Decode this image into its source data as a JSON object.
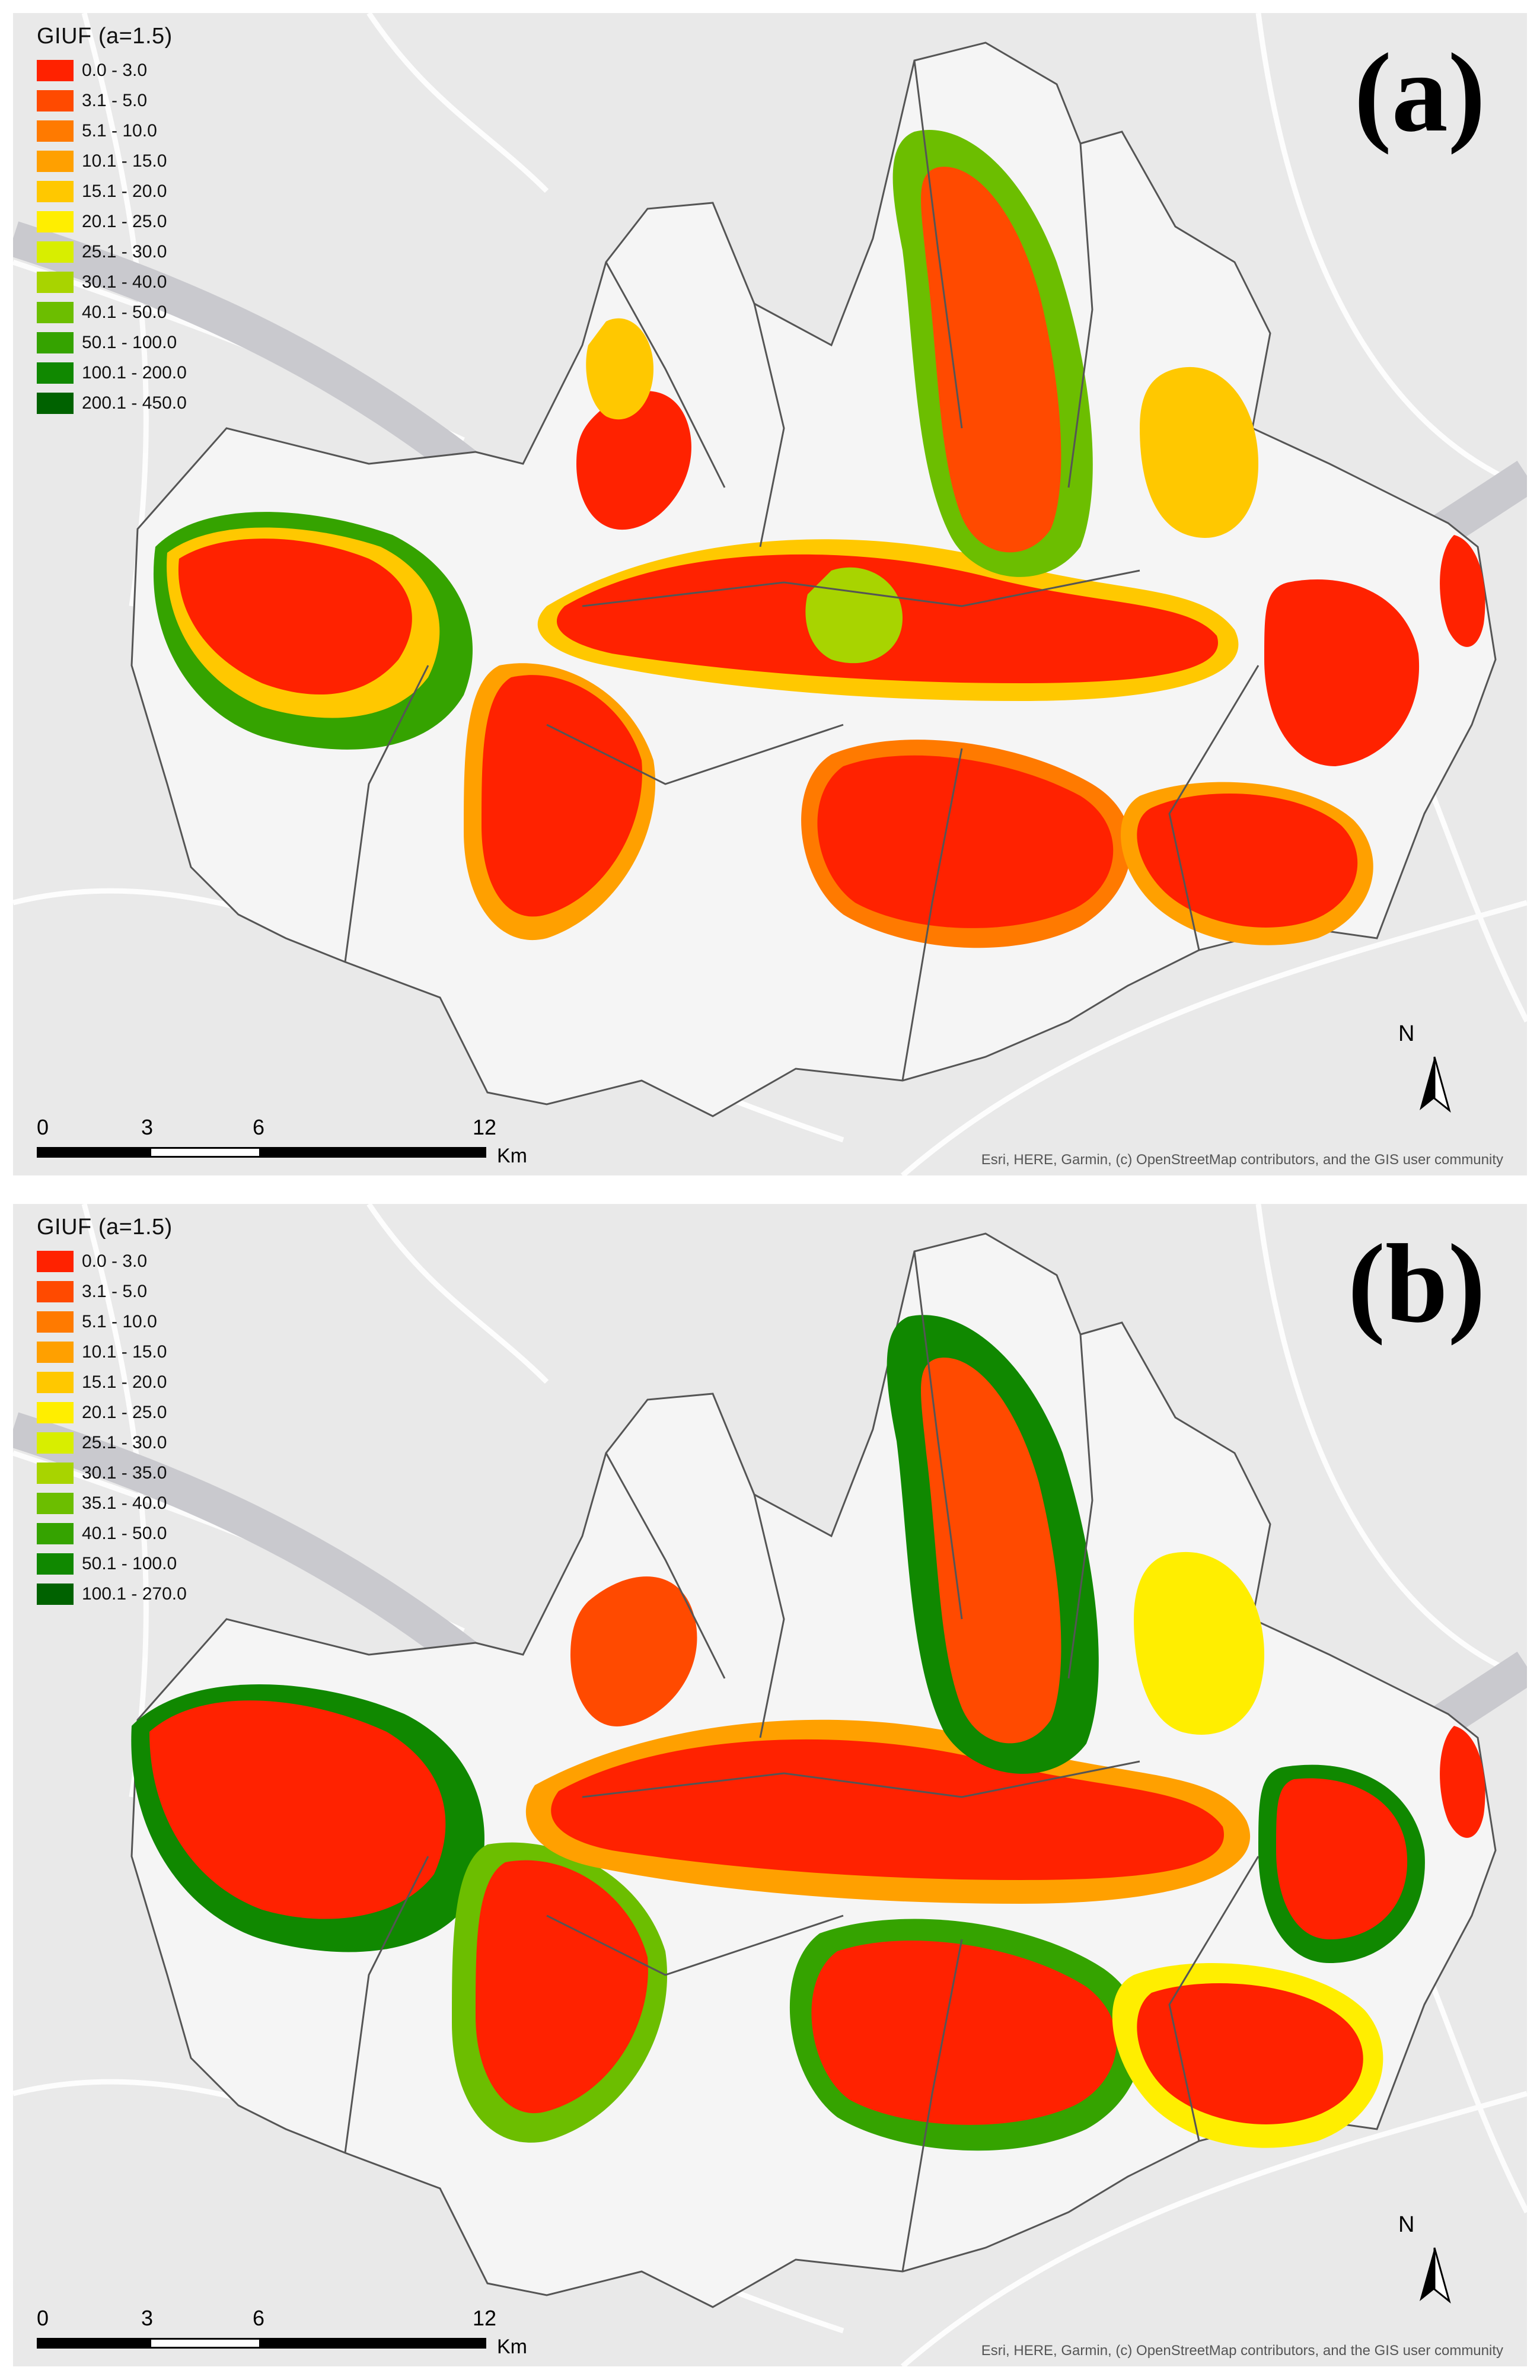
{
  "panels": [
    {
      "id": "a",
      "label": "(a)",
      "legend_title": "GIUF (a=1.5)",
      "legend": [
        {
          "label": "0.0 - 3.0",
          "color": "#ff2200"
        },
        {
          "label": "3.1 - 5.0",
          "color": "#ff4a00"
        },
        {
          "label": "5.1 - 10.0",
          "color": "#ff7a00"
        },
        {
          "label": "10.1 - 15.0",
          "color": "#ffa000"
        },
        {
          "label": "15.1 - 20.0",
          "color": "#ffc800"
        },
        {
          "label": "20.1 - 25.0",
          "color": "#ffee00"
        },
        {
          "label": "25.1 - 30.0",
          "color": "#d8ee00"
        },
        {
          "label": "30.1 - 40.0",
          "color": "#a8d400"
        },
        {
          "label": "40.1 - 50.0",
          "color": "#6cbe00"
        },
        {
          "label": "50.1 - 100.0",
          "color": "#35a300"
        },
        {
          "label": "100.1 - 200.0",
          "color": "#108800"
        },
        {
          "label": "200.1 - 450.0",
          "color": "#006200"
        }
      ]
    },
    {
      "id": "b",
      "label": "(b)",
      "legend_title": "GIUF (a=1.5)",
      "legend": [
        {
          "label": "0.0 - 3.0",
          "color": "#ff2200"
        },
        {
          "label": "3.1 - 5.0",
          "color": "#ff4a00"
        },
        {
          "label": "5.1 - 10.0",
          "color": "#ff7a00"
        },
        {
          "label": "10.1 - 15.0",
          "color": "#ffa000"
        },
        {
          "label": "15.1 - 20.0",
          "color": "#ffc800"
        },
        {
          "label": "20.1 - 25.0",
          "color": "#ffee00"
        },
        {
          "label": "25.1 - 30.0",
          "color": "#d8ee00"
        },
        {
          "label": "30.1 - 35.0",
          "color": "#a8d400"
        },
        {
          "label": "35.1 - 40.0",
          "color": "#6cbe00"
        },
        {
          "label": "40.1 - 50.0",
          "color": "#35a300"
        },
        {
          "label": "50.1 - 100.0",
          "color": "#108800"
        },
        {
          "label": "100.1 - 270.0",
          "color": "#006200"
        }
      ]
    }
  ],
  "scalebar": {
    "ticks": [
      "0",
      "3",
      "6",
      "12"
    ],
    "unit": "Km"
  },
  "north_arrow": "N",
  "attribution": "Esri, HERE, Garmin, (c) OpenStreetMap contributors, and the GIS user community"
}
